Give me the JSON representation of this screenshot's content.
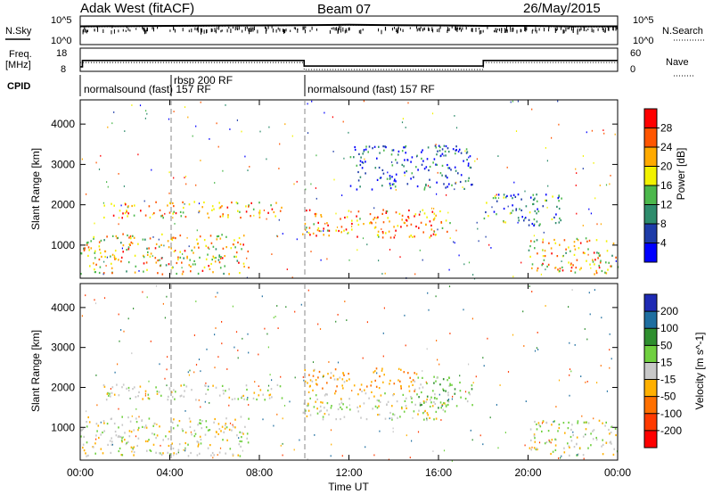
{
  "header": {
    "station": "Adak West (fitACF)",
    "beam": "Beam 07",
    "date": "26/May/2015"
  },
  "labels": {
    "nsky": "N.Sky",
    "nsearch": "N.Search",
    "freq_line1": "Freq.",
    "freq_line2": "[MHz]",
    "nave": "Nave",
    "cpid": "CPID",
    "noise_tick_top": "10^5",
    "noise_tick_bottom": "10^0",
    "freq_tick_top": "18",
    "freq_tick_bottom": "8",
    "nave_tick_top": "60",
    "nave_tick_bottom": "0"
  },
  "cpid_blocks": [
    {
      "text": "normalsound (fast) 157 RF"
    },
    {
      "text": "rbsp 200 RF"
    },
    {
      "text": "normalsound (fast) 157 RF"
    }
  ],
  "chart_data": [
    {
      "type": "line",
      "title": "N.Sky / N.Search",
      "xlabel": "",
      "ylabel": "",
      "scale": "log",
      "series": [
        {
          "name": "N.Sky",
          "x": [
            0,
            4,
            8,
            10,
            12,
            14,
            16,
            18,
            20,
            22,
            24
          ],
          "values": [
            2000,
            2500,
            3000,
            3500,
            4000,
            3500,
            3000,
            2500,
            2500,
            2000,
            2000
          ]
        },
        {
          "name": "N.Search",
          "x": [
            0,
            4,
            8,
            10,
            12,
            14,
            16,
            18,
            20,
            22,
            24
          ],
          "values": [
            1500,
            2000,
            2500,
            3000,
            3500,
            3000,
            2500,
            2000,
            2000,
            1500,
            1500
          ]
        }
      ]
    },
    {
      "type": "line",
      "title": "Freq. [MHz] / Nave",
      "xlabel": "",
      "ylabel": "",
      "series": [
        {
          "name": "Freq.",
          "x": [
            0,
            0.1,
            0.1,
            10,
            10,
            18,
            18,
            24
          ],
          "values": [
            8,
            8,
            12.5,
            12.5,
            8.5,
            8.5,
            12.5,
            12.5
          ]
        },
        {
          "name": "Nave",
          "x": [
            0,
            6,
            10,
            10,
            18,
            18,
            24
          ],
          "values": [
            11,
            11,
            11,
            6,
            6,
            11,
            11
          ]
        }
      ]
    },
    {
      "type": "heatmap",
      "title": "Power",
      "xlabel": "Time UT",
      "ylabel": "Slant Range [km]",
      "xlim": [
        0,
        24
      ],
      "ylim": [
        180,
        4600
      ],
      "xticks": [
        "00:00",
        "04:00",
        "08:00",
        "12:00",
        "16:00",
        "20:00",
        "00:00"
      ],
      "yticks": [
        "1000",
        "2000",
        "3000",
        "4000"
      ],
      "colorbar": {
        "label": "Power [dB]",
        "ticks": [
          "4",
          "8",
          "12",
          "16",
          "20",
          "24",
          "28"
        ],
        "colors": [
          "#0000ff",
          "#1e3ca8",
          "#2e8c6c",
          "#4cb84c",
          "#f2f200",
          "#ffaa00",
          "#ff5500",
          "#ff0000"
        ]
      },
      "scatter_regions": [
        {
          "t0": 0.0,
          "t1": 7.5,
          "r0": 300,
          "r1": 1300,
          "level": 20
        },
        {
          "t0": 1.0,
          "t1": 9.0,
          "r0": 1700,
          "r1": 2100,
          "level": 22
        },
        {
          "t0": 9.9,
          "t1": 16.5,
          "r0": 1200,
          "r1": 1900,
          "level": 24
        },
        {
          "t0": 12.0,
          "t1": 17.5,
          "r0": 2400,
          "r1": 3500,
          "level": 6
        },
        {
          "t0": 18.0,
          "t1": 21.5,
          "r0": 1500,
          "r1": 2300,
          "level": 10
        },
        {
          "t0": 20.0,
          "t1": 24.0,
          "r0": 300,
          "r1": 1200,
          "level": 20
        }
      ]
    },
    {
      "type": "heatmap",
      "title": "Velocity",
      "xlabel": "Time UT",
      "ylabel": "Slant Range [km]",
      "xlim": [
        0,
        24
      ],
      "ylim": [
        180,
        4600
      ],
      "xticks": [
        "00:00",
        "04:00",
        "08:00",
        "12:00",
        "16:00",
        "20:00",
        "00:00"
      ],
      "yticks": [
        "1000",
        "2000",
        "3000",
        "4000"
      ],
      "colorbar": {
        "label": "Velocity [m s^-1]",
        "ticks": [
          "200",
          "100",
          "50",
          "15",
          "-15",
          "-50",
          "-100",
          "-200"
        ],
        "colors": [
          "#1e2ab4",
          "#1e6ea0",
          "#2f8f2f",
          "#70d040",
          "#c8c8c8",
          "#ffb000",
          "#ff7000",
          "#ff3a00",
          "#ff0000"
        ]
      },
      "scatter_regions": [
        {
          "t0": 0.0,
          "t1": 7.5,
          "r0": 300,
          "r1": 1300,
          "level": 0
        },
        {
          "t0": 1.0,
          "t1": 9.0,
          "r0": 1700,
          "r1": 2100,
          "level": 0
        },
        {
          "t0": 9.9,
          "t1": 16.5,
          "r0": 1200,
          "r1": 1900,
          "level": 0
        },
        {
          "t0": 10.0,
          "t1": 15.0,
          "r0": 1900,
          "r1": 2500,
          "level": -40
        },
        {
          "t0": 15.0,
          "t1": 17.5,
          "r0": 1500,
          "r1": 2300,
          "level": 40
        },
        {
          "t0": 20.0,
          "t1": 24.0,
          "r0": 300,
          "r1": 1200,
          "level": 0
        }
      ]
    }
  ]
}
